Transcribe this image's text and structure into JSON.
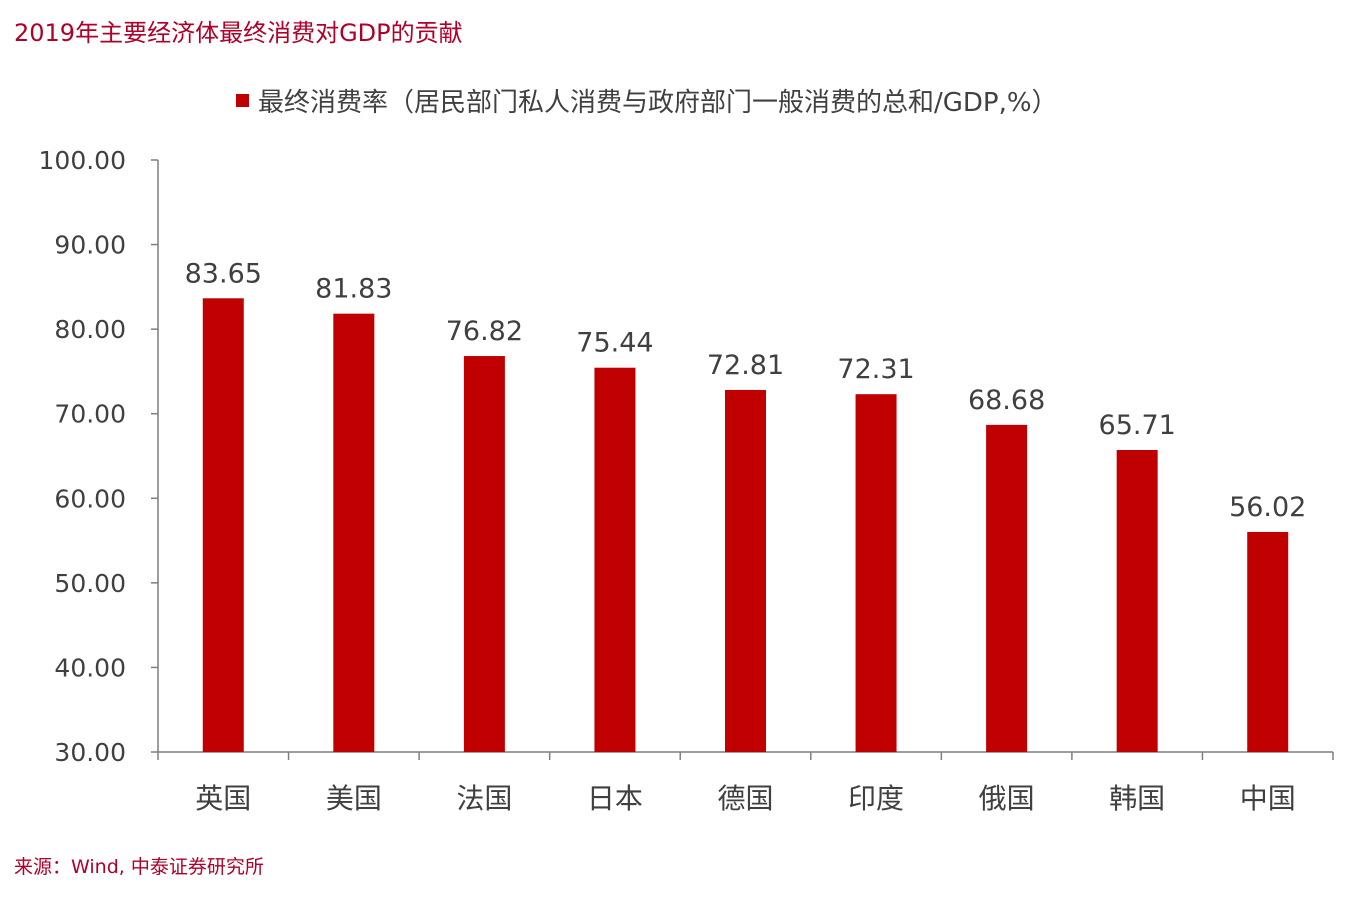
{
  "header": {
    "title": "2019年主要经济体最终消费对GDP的贡献"
  },
  "footer": {
    "source": "来源：Wind, 中泰证券研究所"
  },
  "colors": {
    "accent": "#b0002a",
    "bar": "#c00000",
    "axis": "#7f7f7f",
    "text": "#404040"
  },
  "chart_data": {
    "type": "bar",
    "title": "",
    "xlabel": "",
    "ylabel": "",
    "categories": [
      "英国",
      "美国",
      "法国",
      "日本",
      "德国",
      "印度",
      "俄国",
      "韩国",
      "中国"
    ],
    "series": [
      {
        "name": "最终消费率（居民部门私人消费与政府部门一般消费的总和/GDP,%）",
        "values": [
          83.65,
          81.83,
          76.82,
          75.44,
          72.81,
          72.31,
          68.68,
          65.71,
          56.02
        ]
      }
    ],
    "data_labels": [
      "83.65",
      "81.83",
      "76.82",
      "75.44",
      "72.81",
      "72.31",
      "68.68",
      "65.71",
      "56.02"
    ],
    "ylim": [
      30,
      100
    ],
    "yticks": [
      30,
      40,
      50,
      60,
      70,
      80,
      90,
      100
    ],
    "ytick_labels": [
      "30.00",
      "40.00",
      "50.00",
      "60.00",
      "70.00",
      "80.00",
      "90.00",
      "100.00"
    ],
    "grid": false,
    "legend_position": "top"
  }
}
